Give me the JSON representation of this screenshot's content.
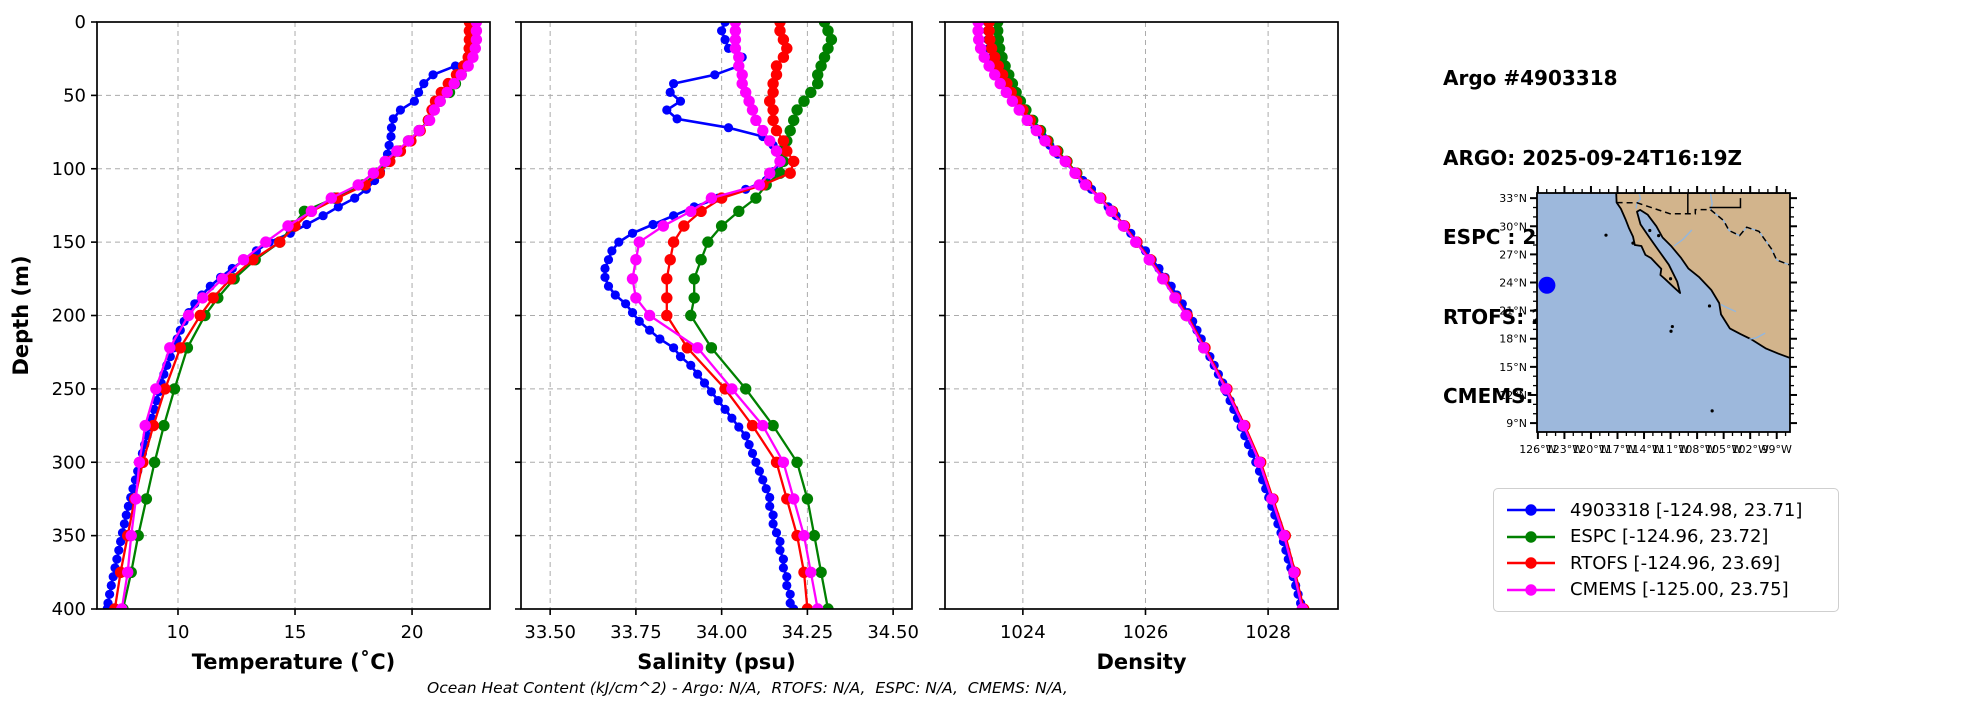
{
  "header": {
    "line1": "Argo #4903318",
    "line2": "ARGO: 2025-09-24T16:19Z",
    "line3": "ESPC : 2025-09-24T15:00Z",
    "line4": "RTOFS: 2025-09-24T18:00Z",
    "line5": "CMEMS: 2025-09-24T18:00Z"
  },
  "footer": {
    "text": "Ocean Heat Content (kJ/cm^2) - Argo: N/A,  RTOFS: N/A,  ESPC: N/A,  CMEMS: N/A,"
  },
  "legend": {
    "entries": [
      {
        "label": "4903318 [-124.98, 23.71]",
        "color": "#0000ff"
      },
      {
        "label": "ESPC [-124.96, 23.72]",
        "color": "#008000"
      },
      {
        "label": "RTOFS [-124.96, 23.69]",
        "color": "#ff0000"
      },
      {
        "label": "CMEMS [-125.00, 23.75]",
        "color": "#ff00ff"
      }
    ]
  },
  "axes": {
    "depth_label": "Depth (m)",
    "depth_ticks": [
      "0",
      "50",
      "100",
      "150",
      "200",
      "250",
      "300",
      "350",
      "400"
    ],
    "depth_tick_values": [
      0,
      50,
      100,
      150,
      200,
      250,
      300,
      350,
      400
    ],
    "panels": [
      {
        "key": "temperature",
        "xlabel": "Temperature (˚C)",
        "tick_labels": [
          "10",
          "15",
          "20"
        ],
        "tick_values": [
          10,
          15,
          20
        ],
        "xmin": 6.54,
        "xmax": 23.33
      },
      {
        "key": "salinity",
        "xlabel": "Salinity (psu)",
        "tick_labels": [
          "33.50",
          "33.75",
          "34.00",
          "34.25",
          "34.50"
        ],
        "tick_values": [
          33.5,
          33.75,
          34.0,
          34.25,
          34.5
        ],
        "xmin": 33.415,
        "xmax": 34.555
      },
      {
        "key": "density",
        "xlabel": "Density",
        "tick_labels": [
          "1024",
          "1026",
          "1028"
        ],
        "tick_values": [
          1024,
          1026,
          1028
        ],
        "xmin": 1022.73,
        "xmax": 1029.14
      }
    ]
  },
  "map": {
    "lat_tick_labels": [
      "33°N",
      "30°N",
      "27°N",
      "24°N",
      "21°N",
      "18°N",
      "15°N",
      "12°N",
      "9°N"
    ],
    "lat_tick_values": [
      33,
      30,
      27,
      24,
      21,
      18,
      15,
      12,
      9
    ],
    "lon_tick_labels": [
      "126°W",
      "123°W",
      "120°W",
      "117°W",
      "114°W",
      "111°W",
      "108°W",
      "105°W",
      "102°W",
      "99°W"
    ],
    "lon_tick_values": [
      -126,
      -123,
      -120,
      -117,
      -114,
      -111,
      -108,
      -105,
      -102,
      -99
    ],
    "marker": {
      "lon": -124.98,
      "lat": 23.71,
      "color": "#0000ff"
    },
    "ocean_color": "#9db8dc",
    "land_color": "#d2b48c"
  },
  "chart_data": {
    "type": "line",
    "ylabel": "Depth (m)",
    "ylim": [
      400,
      0
    ],
    "grid": true,
    "legend_position": "lower-right-outside",
    "profiles": {
      "argo": {
        "label": "4903318 [-124.98, 23.71]",
        "color": "#0000ff",
        "depth": [
          0,
          6,
          12,
          18,
          24,
          30,
          36,
          42,
          48,
          54,
          60,
          66,
          72,
          78,
          84,
          90,
          96,
          102,
          108,
          114,
          120,
          126,
          132,
          138,
          144,
          150,
          156,
          162,
          168,
          174,
          180,
          186,
          192,
          198,
          204,
          210,
          216,
          222,
          228,
          234,
          240,
          246,
          252,
          258,
          264,
          270,
          276,
          282,
          288,
          294,
          300,
          306,
          312,
          318,
          324,
          330,
          336,
          342,
          348,
          354,
          360,
          366,
          372,
          378,
          384,
          390,
          396,
          400
        ],
        "temperature": [
          22.62,
          22.63,
          22.64,
          22.63,
          22.55,
          21.85,
          20.9,
          20.5,
          20.28,
          20.1,
          19.5,
          19.2,
          19.12,
          19.1,
          19.02,
          18.95,
          18.85,
          18.65,
          18.4,
          18.05,
          17.55,
          16.85,
          16.2,
          15.5,
          14.8,
          13.9,
          13.35,
          12.85,
          12.32,
          11.82,
          11.38,
          11.02,
          10.72,
          10.46,
          10.26,
          10.1,
          9.96,
          9.82,
          9.67,
          9.52,
          9.4,
          9.28,
          9.18,
          9.08,
          8.98,
          8.88,
          8.78,
          8.68,
          8.58,
          8.48,
          8.38,
          8.28,
          8.18,
          8.08,
          7.98,
          7.88,
          7.79,
          7.71,
          7.63,
          7.55,
          7.47,
          7.39,
          7.31,
          7.23,
          7.15,
          7.08,
          7.01,
          6.97
        ],
        "salinity": [
          34.01,
          34.0,
          34.01,
          34.02,
          34.06,
          34.05,
          33.98,
          33.86,
          33.85,
          33.88,
          33.84,
          33.87,
          34.02,
          34.12,
          34.15,
          34.17,
          34.17,
          34.15,
          34.13,
          34.07,
          33.99,
          33.92,
          33.86,
          33.8,
          33.74,
          33.7,
          33.68,
          33.67,
          33.66,
          33.66,
          33.67,
          33.69,
          33.72,
          33.74,
          33.76,
          33.79,
          33.82,
          33.86,
          33.88,
          33.91,
          33.93,
          33.95,
          33.97,
          33.99,
          34.01,
          34.03,
          34.05,
          34.07,
          34.08,
          34.09,
          34.1,
          34.11,
          34.12,
          34.13,
          34.14,
          34.14,
          34.15,
          34.15,
          34.16,
          34.17,
          34.17,
          34.18,
          34.18,
          34.19,
          34.19,
          34.2,
          34.2,
          34.21
        ],
        "density": [
          1023.42,
          1023.42,
          1023.43,
          1023.45,
          1023.5,
          1023.56,
          1023.63,
          1023.7,
          1023.78,
          1023.87,
          1023.97,
          1024.08,
          1024.2,
          1024.32,
          1024.44,
          1024.57,
          1024.7,
          1024.84,
          1024.98,
          1025.12,
          1025.26,
          1025.39,
          1025.52,
          1025.64,
          1025.76,
          1025.88,
          1026.0,
          1026.11,
          1026.22,
          1026.32,
          1026.42,
          1026.51,
          1026.6,
          1026.69,
          1026.77,
          1026.84,
          1026.91,
          1026.98,
          1027.05,
          1027.12,
          1027.19,
          1027.26,
          1027.32,
          1027.38,
          1027.44,
          1027.5,
          1027.56,
          1027.62,
          1027.68,
          1027.74,
          1027.8,
          1027.86,
          1027.91,
          1027.96,
          1028.01,
          1028.06,
          1028.11,
          1028.16,
          1028.21,
          1028.25,
          1028.29,
          1028.33,
          1028.37,
          1028.41,
          1028.45,
          1028.49,
          1028.53,
          1028.56
        ]
      },
      "espc": {
        "label": "ESPC [-124.96, 23.72]",
        "color": "#008000",
        "depth": [
          0,
          6,
          12,
          18,
          24,
          30,
          36,
          42,
          48,
          54,
          60,
          67,
          74,
          81,
          88,
          95,
          103,
          111,
          120,
          129,
          139,
          150,
          162,
          175,
          188,
          200,
          222,
          250,
          275,
          300,
          325,
          350,
          375,
          400
        ],
        "temperature": [
          22.65,
          22.65,
          22.65,
          22.6,
          22.5,
          22.3,
          22.1,
          21.85,
          21.6,
          21.2,
          20.9,
          20.7,
          20.3,
          19.85,
          19.4,
          18.95,
          18.5,
          17.9,
          16.7,
          15.4,
          14.9,
          14.35,
          13.3,
          12.4,
          11.7,
          11.15,
          10.4,
          9.85,
          9.4,
          9.0,
          8.65,
          8.3,
          8.0,
          7.65
        ],
        "salinity": [
          34.3,
          34.31,
          34.32,
          34.31,
          34.3,
          34.29,
          34.28,
          34.28,
          34.26,
          34.24,
          34.22,
          34.21,
          34.2,
          34.19,
          34.17,
          34.18,
          34.17,
          34.13,
          34.1,
          34.05,
          34.0,
          33.96,
          33.94,
          33.92,
          33.92,
          33.91,
          33.97,
          34.07,
          34.15,
          34.22,
          34.25,
          34.27,
          34.29,
          34.31
        ],
        "density": [
          1023.59,
          1023.59,
          1023.6,
          1023.62,
          1023.66,
          1023.71,
          1023.77,
          1023.83,
          1023.89,
          1023.96,
          1024.05,
          1024.16,
          1024.29,
          1024.41,
          1024.57,
          1024.72,
          1024.88,
          1025.04,
          1025.27,
          1025.46,
          1025.65,
          1025.85,
          1026.07,
          1026.29,
          1026.49,
          1026.67,
          1026.95,
          1027.31,
          1027.6,
          1027.86,
          1028.06,
          1028.26,
          1028.42,
          1028.56
        ]
      },
      "rtofs": {
        "label": "RTOFS [-124.96, 23.69]",
        "color": "#ff0000",
        "depth": [
          0,
          6,
          12,
          18,
          24,
          30,
          36,
          42,
          48,
          54,
          60,
          67,
          74,
          81,
          88,
          95,
          103,
          111,
          120,
          129,
          139,
          150,
          162,
          175,
          188,
          200,
          222,
          250,
          275,
          300,
          325,
          350,
          375,
          400
        ],
        "temperature": [
          22.45,
          22.45,
          22.45,
          22.44,
          22.4,
          22.2,
          21.9,
          21.55,
          21.25,
          21.0,
          20.85,
          20.7,
          20.35,
          19.95,
          19.5,
          19.05,
          18.6,
          18.0,
          16.8,
          15.7,
          15.0,
          14.35,
          13.2,
          12.25,
          11.5,
          10.95,
          10.1,
          9.45,
          8.95,
          8.5,
          8.15,
          7.85,
          7.55,
          7.3
        ],
        "salinity": [
          34.17,
          34.17,
          34.18,
          34.19,
          34.18,
          34.16,
          34.16,
          34.15,
          34.15,
          34.14,
          34.15,
          34.15,
          34.16,
          34.18,
          34.19,
          34.21,
          34.2,
          34.12,
          34.0,
          33.94,
          33.89,
          33.86,
          33.85,
          33.84,
          33.84,
          33.84,
          33.9,
          34.01,
          34.09,
          34.16,
          34.19,
          34.22,
          34.24,
          34.25
        ],
        "density": [
          1023.45,
          1023.45,
          1023.46,
          1023.49,
          1023.54,
          1023.6,
          1023.67,
          1023.74,
          1023.81,
          1023.9,
          1024.0,
          1024.12,
          1024.26,
          1024.39,
          1024.55,
          1024.71,
          1024.87,
          1025.04,
          1025.27,
          1025.46,
          1025.66,
          1025.86,
          1026.08,
          1026.3,
          1026.5,
          1026.68,
          1026.97,
          1027.33,
          1027.62,
          1027.88,
          1028.08,
          1028.28,
          1028.44,
          1028.58
        ]
      },
      "cmems": {
        "label": "CMEMS [-125.00, 23.75]",
        "color": "#ff00ff",
        "depth": [
          0,
          6,
          12,
          18,
          24,
          30,
          36,
          42,
          48,
          54,
          60,
          67,
          74,
          81,
          88,
          95,
          103,
          111,
          120,
          129,
          139,
          150,
          162,
          175,
          188,
          200,
          222,
          250,
          275,
          300,
          325,
          350,
          375,
          400
        ],
        "temperature": [
          22.75,
          22.75,
          22.75,
          22.7,
          22.6,
          22.4,
          22.1,
          21.8,
          21.5,
          21.2,
          20.95,
          20.75,
          20.3,
          19.85,
          19.35,
          18.85,
          18.35,
          17.7,
          16.55,
          15.7,
          14.7,
          13.75,
          12.8,
          11.9,
          11.05,
          10.45,
          9.65,
          9.05,
          8.6,
          8.35,
          8.2,
          8.0,
          7.85,
          7.6
        ],
        "salinity": [
          34.04,
          34.04,
          34.04,
          34.04,
          34.05,
          34.05,
          34.06,
          34.06,
          34.07,
          34.08,
          34.09,
          34.1,
          34.12,
          34.14,
          34.16,
          34.17,
          34.14,
          34.11,
          33.97,
          33.91,
          33.83,
          33.76,
          33.75,
          33.74,
          33.75,
          33.79,
          33.93,
          34.03,
          34.12,
          34.18,
          34.21,
          34.24,
          34.26,
          34.28
        ],
        "density": [
          1023.27,
          1023.27,
          1023.28,
          1023.31,
          1023.37,
          1023.45,
          1023.54,
          1023.63,
          1023.73,
          1023.83,
          1023.94,
          1024.07,
          1024.22,
          1024.36,
          1024.52,
          1024.69,
          1024.85,
          1025.02,
          1025.25,
          1025.44,
          1025.64,
          1025.84,
          1026.06,
          1026.28,
          1026.48,
          1026.66,
          1026.95,
          1027.31,
          1027.6,
          1027.86,
          1028.06,
          1028.26,
          1028.42,
          1028.56
        ]
      }
    }
  }
}
